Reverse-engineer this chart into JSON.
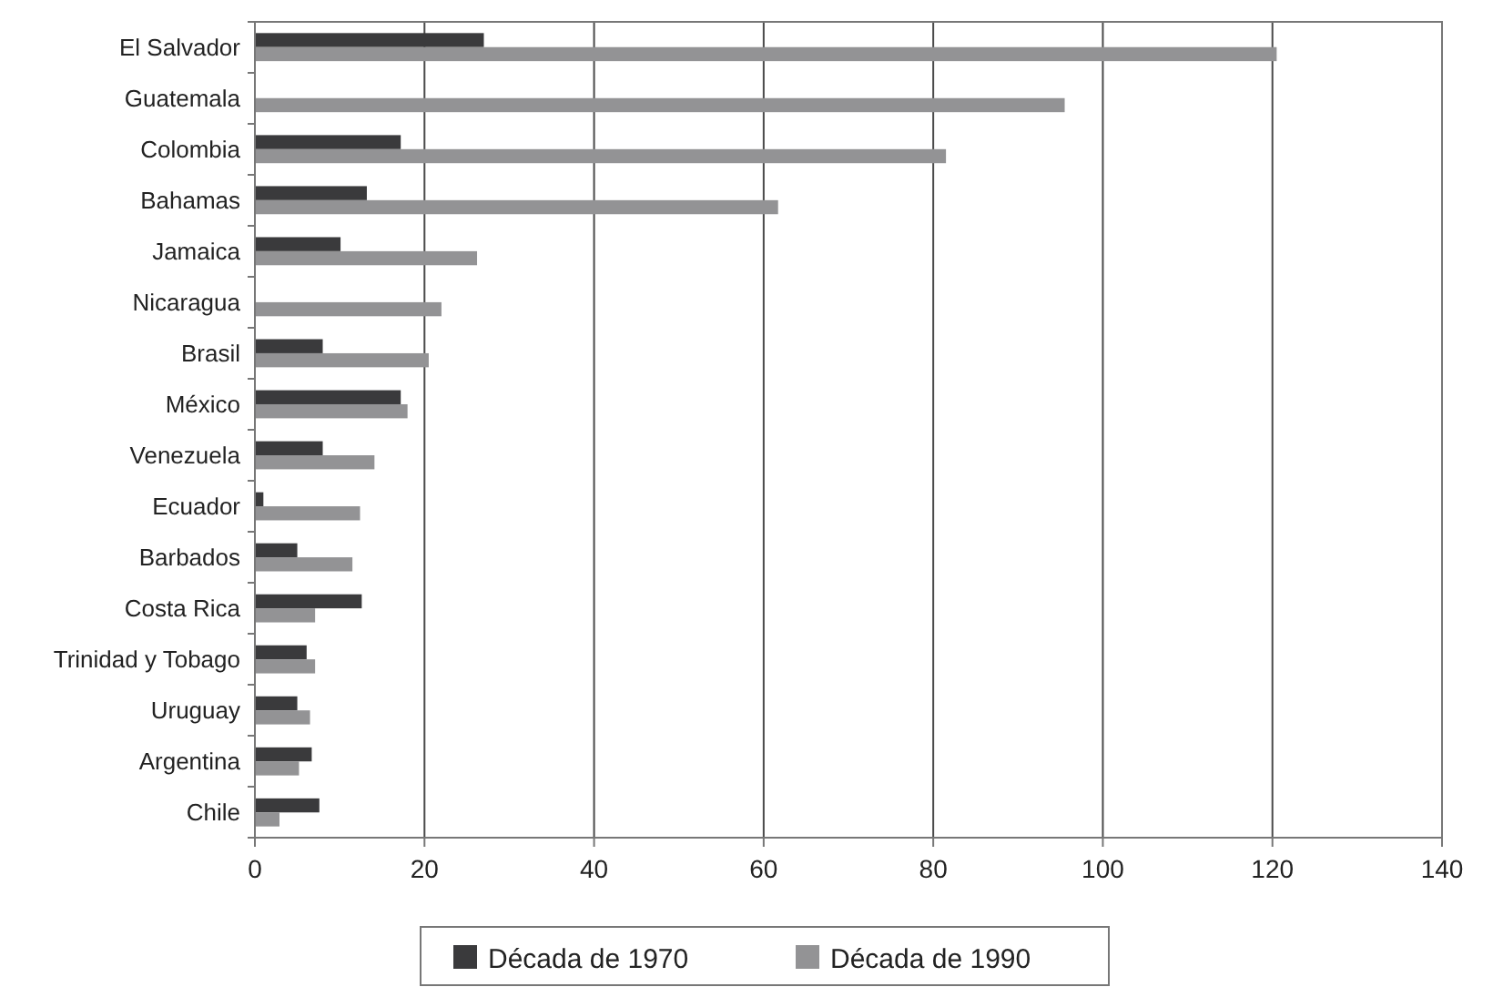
{
  "chart_data": {
    "type": "bar",
    "orientation": "horizontal",
    "categories": [
      "El Salvador",
      "Guatemala",
      "Colombia",
      "Bahamas",
      "Jamaica",
      "Nicaragua",
      "Brasil",
      "México",
      "Venezuela",
      "Ecuador",
      "Barbados",
      "Costa Rica",
      "Trinidad y Tobago",
      "Uruguay",
      "Argentina",
      "Chile"
    ],
    "series": [
      {
        "name": "Década de 1970",
        "color": "#3a3a3c",
        "values": [
          27,
          null,
          17.2,
          13.2,
          10.1,
          null,
          8,
          17.2,
          8,
          1,
          5,
          12.6,
          6.1,
          5,
          6.7,
          7.6
        ]
      },
      {
        "name": "Década de 1990",
        "color": "#939395",
        "values": [
          120.5,
          95.5,
          81.5,
          61.7,
          26.2,
          22,
          20.5,
          18,
          14.1,
          12.4,
          11.5,
          7.1,
          7.1,
          6.5,
          5.2,
          2.9
        ]
      }
    ],
    "xlim": [
      0,
      140
    ],
    "xticks": [
      0,
      20,
      40,
      60,
      80,
      100,
      120,
      140
    ],
    "grid": "x",
    "legend": "bottom"
  }
}
